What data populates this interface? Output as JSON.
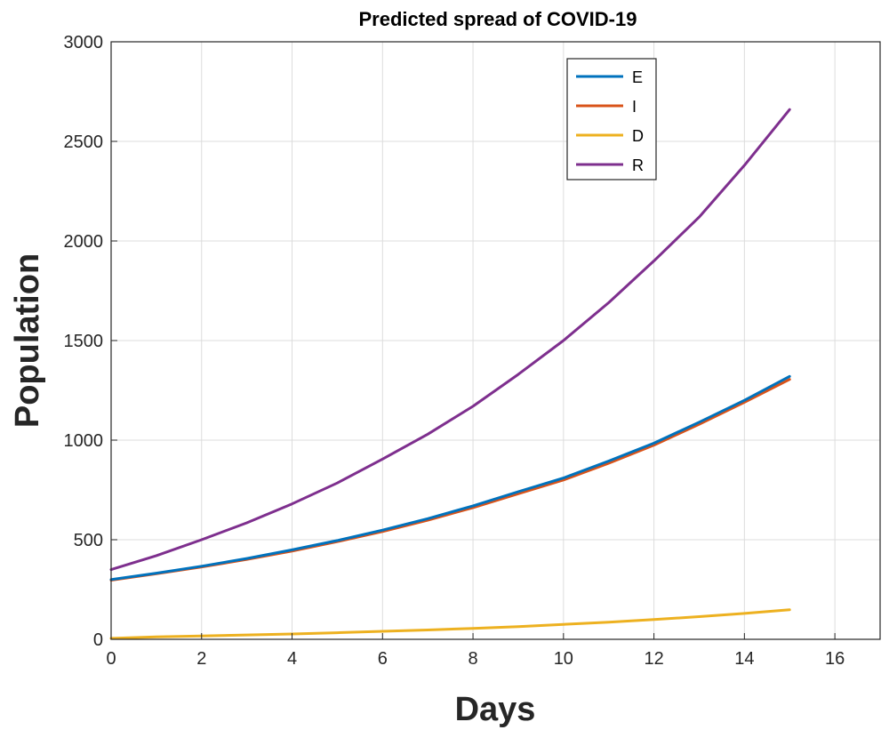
{
  "chart_data": {
    "type": "line",
    "title": "Predicted spread of COVID-19",
    "xlabel": "Days",
    "ylabel": "Population",
    "xlim": [
      0,
      17
    ],
    "ylim": [
      0,
      3000
    ],
    "xticks": [
      0,
      2,
      4,
      6,
      8,
      10,
      12,
      14,
      16
    ],
    "yticks": [
      0,
      500,
      1000,
      1500,
      2000,
      2500,
      3000
    ],
    "grid": true,
    "legend_position": "top-right",
    "x": [
      0,
      1,
      2,
      3,
      4,
      5,
      6,
      7,
      8,
      9,
      10,
      11,
      12,
      13,
      14,
      15
    ],
    "series": [
      {
        "name": "E",
        "color": "#0072BD",
        "values": [
          300,
          332,
          367,
          406,
          449,
          496,
          548,
          606,
          670,
          741,
          810,
          895,
          985,
          1090,
          1200,
          1320
        ]
      },
      {
        "name": "I",
        "color": "#D95319",
        "values": [
          297,
          329,
          363,
          401,
          443,
          490,
          541,
          598,
          661,
          731,
          800,
          884,
          975,
          1080,
          1190,
          1305
        ]
      },
      {
        "name": "D",
        "color": "#EDB120",
        "values": [
          5,
          12,
          17,
          22,
          27,
          33,
          40,
          47,
          55,
          64,
          75,
          86,
          99,
          114,
          130,
          148
        ]
      },
      {
        "name": "R",
        "color": "#7E2F8E",
        "values": [
          350,
          420,
          500,
          585,
          680,
          785,
          905,
          1030,
          1170,
          1330,
          1500,
          1690,
          1900,
          2120,
          2380,
          2660
        ]
      }
    ]
  }
}
